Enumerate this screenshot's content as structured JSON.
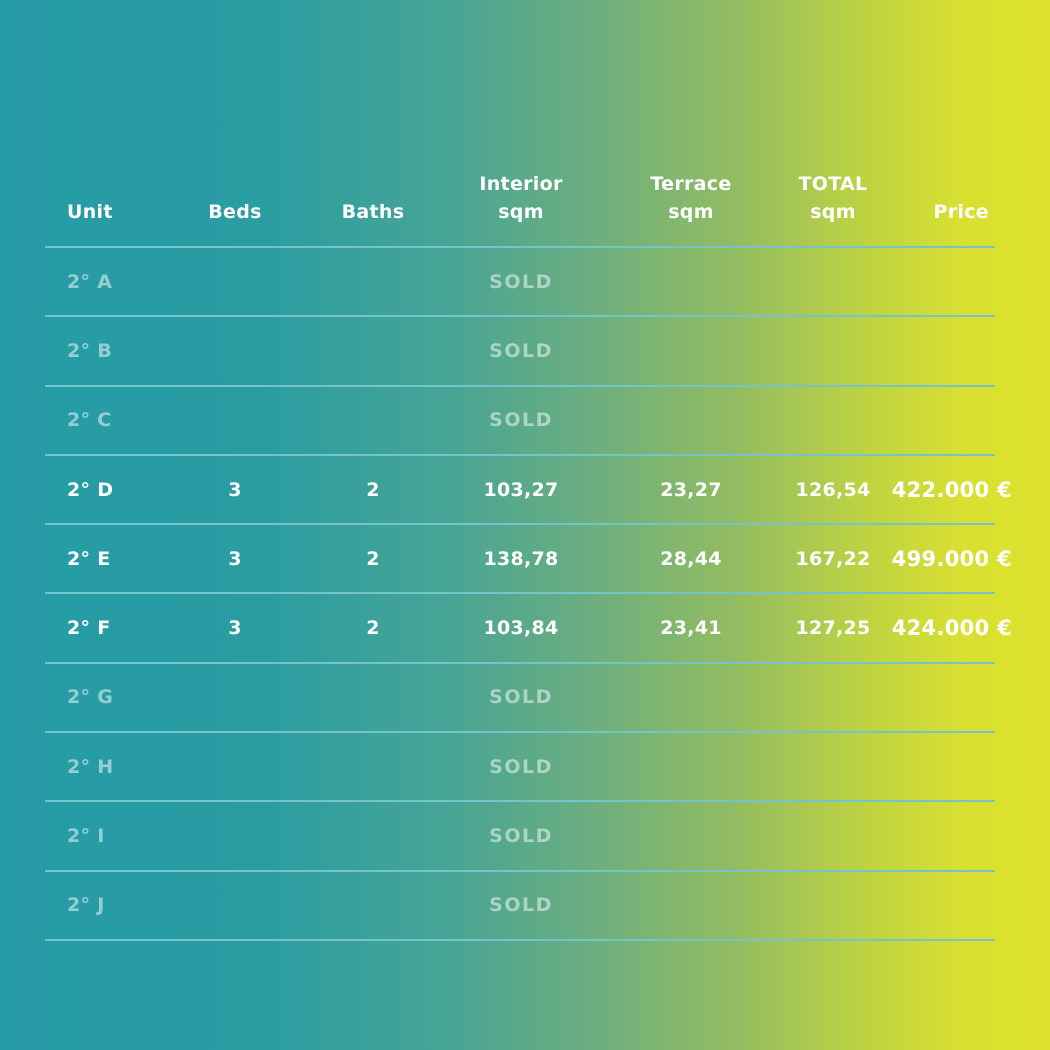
{
  "table": {
    "columns": [
      {
        "key": "unit",
        "label": "Unit"
      },
      {
        "key": "beds",
        "label": "Beds"
      },
      {
        "key": "baths",
        "label": "Baths"
      },
      {
        "key": "interior",
        "label": "Interior\nsqm"
      },
      {
        "key": "terrace",
        "label": "Terrace\nsqm"
      },
      {
        "key": "total",
        "label": "TOTAL\nsqm"
      },
      {
        "key": "price",
        "label": "Price"
      }
    ],
    "rows": [
      {
        "unit": "2° A",
        "status": "sold",
        "status_label": "SOLD"
      },
      {
        "unit": "2° B",
        "status": "sold",
        "status_label": "SOLD"
      },
      {
        "unit": "2° C",
        "status": "sold",
        "status_label": "SOLD"
      },
      {
        "unit": "2° D",
        "status": "available",
        "beds": "3",
        "baths": "2",
        "interior": "103,27",
        "terrace": "23,27",
        "total": "126,54",
        "price": "422.000 €"
      },
      {
        "unit": "2° E",
        "status": "available",
        "beds": "3",
        "baths": "2",
        "interior": "138,78",
        "terrace": "28,44",
        "total": "167,22",
        "price": "499.000 €"
      },
      {
        "unit": "2° F",
        "status": "available",
        "beds": "3",
        "baths": "2",
        "interior": "103,84",
        "terrace": "23,41",
        "total": "127,25",
        "price": "424.000 €"
      },
      {
        "unit": "2° G",
        "status": "sold",
        "status_label": "SOLD"
      },
      {
        "unit": "2° H",
        "status": "sold",
        "status_label": "SOLD"
      },
      {
        "unit": "2° I",
        "status": "sold",
        "status_label": "SOLD"
      },
      {
        "unit": "2° J",
        "status": "sold",
        "status_label": "SOLD"
      }
    ]
  },
  "colors": {
    "gradient_start": "#259ba6",
    "gradient_end": "#dde22e",
    "divider": "#74c5c9",
    "text": "#ffffff",
    "sold_text": "rgba(255,255,255,0.5)"
  }
}
